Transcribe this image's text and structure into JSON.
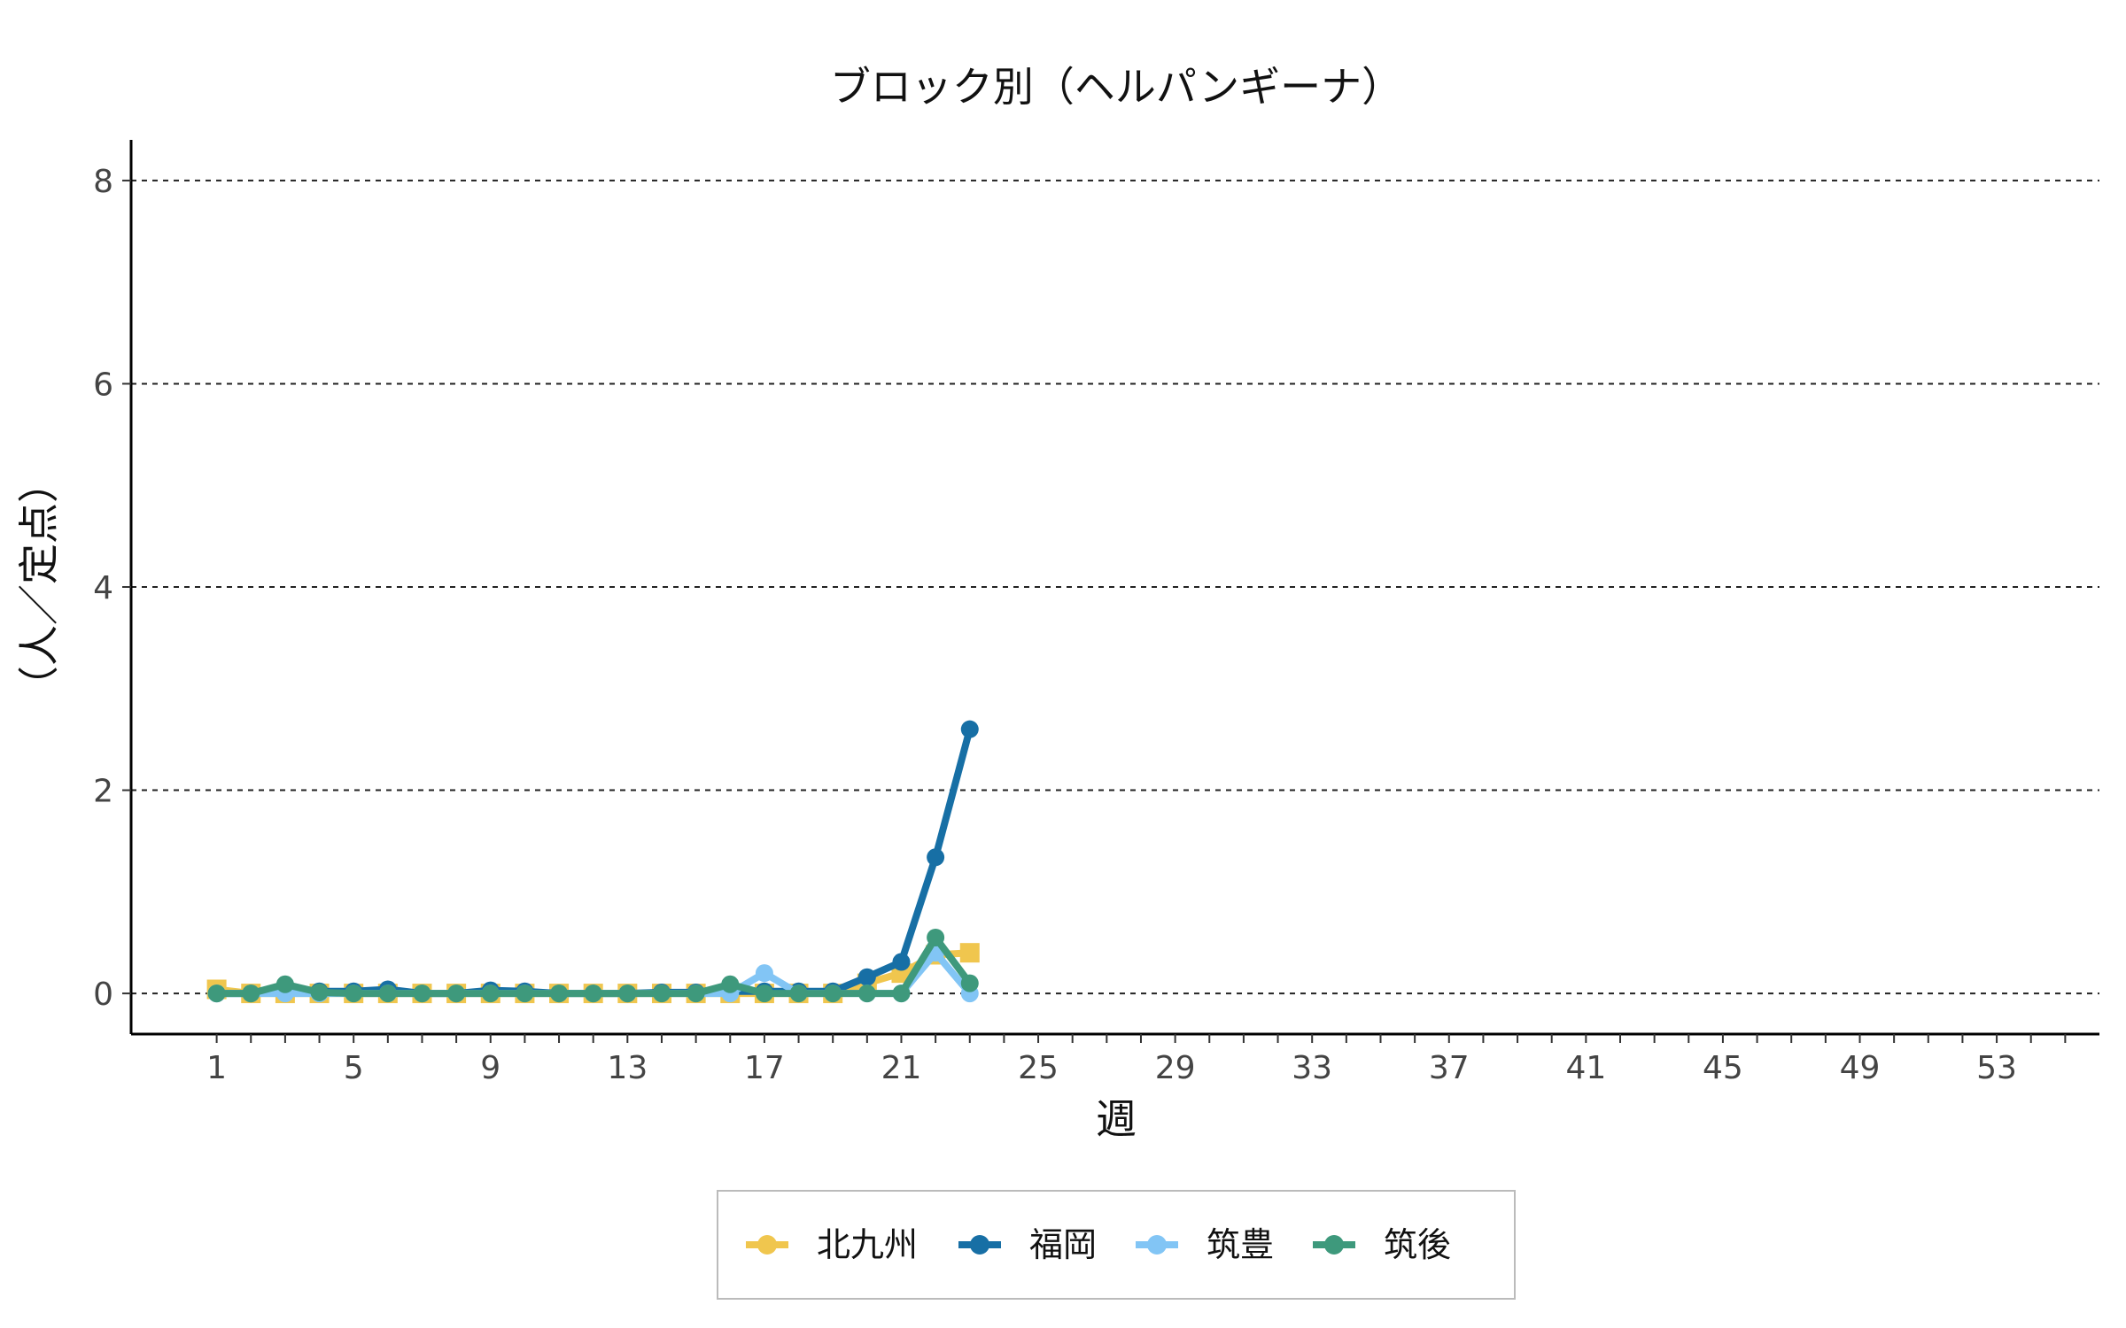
{
  "chart_data": {
    "type": "line",
    "title": "ブロック別（ヘルパンギーナ）",
    "xlabel": "週",
    "ylabel": "（人／定点）",
    "xlim": [
      -1.5,
      56
    ],
    "ylim": [
      -0.4,
      8.4
    ],
    "x_ticks": [
      1,
      5,
      9,
      13,
      17,
      21,
      25,
      29,
      33,
      37,
      41,
      45,
      49,
      53
    ],
    "y_ticks": [
      0,
      2,
      4,
      6,
      8
    ],
    "grid": "horizontal-dashed",
    "legend_position": "bottom",
    "x": [
      1,
      2,
      3,
      4,
      5,
      6,
      7,
      8,
      9,
      10,
      11,
      12,
      13,
      14,
      15,
      16,
      17,
      18,
      19,
      20,
      21,
      22,
      23
    ],
    "series": [
      {
        "name": "北九州",
        "color": "#F0C64E",
        "marker": "square",
        "values": [
          0.04,
          0,
          0,
          0,
          0,
          0,
          0,
          0,
          0,
          0,
          0,
          0,
          0,
          0,
          0,
          0,
          0,
          0,
          0,
          0.1,
          0.2,
          0.38,
          0.4
        ]
      },
      {
        "name": "福岡",
        "color": "#176FA5",
        "marker": "circle",
        "values": [
          0,
          0,
          0.05,
          0.02,
          0.02,
          0.04,
          0,
          0,
          0.03,
          0.02,
          0,
          0,
          0,
          0.01,
          0.01,
          0.02,
          0.02,
          0.02,
          0.02,
          0.16,
          0.31,
          1.34,
          2.6
        ]
      },
      {
        "name": "筑豊",
        "color": "#82C5F5",
        "marker": "circle",
        "values": [
          0,
          0,
          0,
          0,
          0,
          0,
          0,
          0,
          0,
          0,
          0,
          0,
          0,
          0,
          0,
          0,
          0.2,
          0,
          0,
          0,
          0,
          0.4,
          0
        ]
      },
      {
        "name": "筑後",
        "color": "#3E997C",
        "marker": "circle",
        "values": [
          0,
          0,
          0.09,
          0.01,
          0,
          0,
          0,
          0,
          0,
          0,
          0,
          0,
          0,
          0,
          0,
          0.09,
          0,
          0,
          0,
          0,
          0,
          0.55,
          0.1
        ]
      }
    ]
  }
}
